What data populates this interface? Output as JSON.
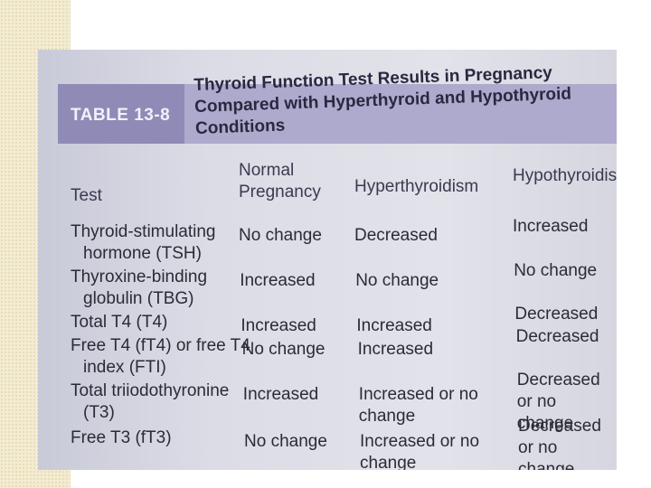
{
  "table": {
    "label": "TABLE 13-8",
    "title": "Thyroid Function Test Results in Pregnancy Compared with Hyperthyroid and Hypothyroid Conditions",
    "columns": [
      "Test",
      "Normal Pregnancy",
      "Hyperthyroidism",
      "Hypothyroidism"
    ],
    "rows": [
      [
        "Thyroid-stimulating hormone (TSH)",
        "No change",
        "Decreased",
        "Increased"
      ],
      [
        "Thyroxine-binding globulin (TBG)",
        "Increased",
        "No change",
        "No change"
      ],
      [
        "Total T4 (T4)",
        "Increased",
        "Increased",
        "Decreased"
      ],
      [
        "Free T4 (fT4) or free T4 index (FTI)",
        "No change",
        "Increased",
        "Decreased"
      ],
      [
        "Total triiodothyronine (T3)",
        "Increased",
        "Increased or no change",
        "Decreased or no change"
      ],
      [
        "Free T3 (fT3)",
        "No change",
        "Increased or no change",
        "Decreased or no change"
      ]
    ]
  }
}
